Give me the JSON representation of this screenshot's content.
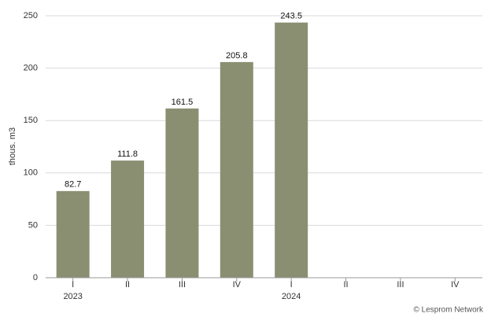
{
  "chart_data": {
    "type": "bar",
    "y_label": "thous. m3",
    "categories": [
      "I",
      "II",
      "III",
      "IV",
      "I",
      "II",
      "III",
      "IV"
    ],
    "year_labels": [
      "2023",
      null,
      null,
      null,
      "2024",
      null,
      null,
      null
    ],
    "values": [
      82.7,
      111.8,
      161.5,
      205.8,
      243.5,
      null,
      null,
      null
    ],
    "color": "#8a8f72",
    "ylim": [
      0,
      250
    ],
    "yticks": [
      0,
      50,
      100,
      150,
      200,
      250
    ],
    "grid": true,
    "source": "© Lesprom Network"
  }
}
